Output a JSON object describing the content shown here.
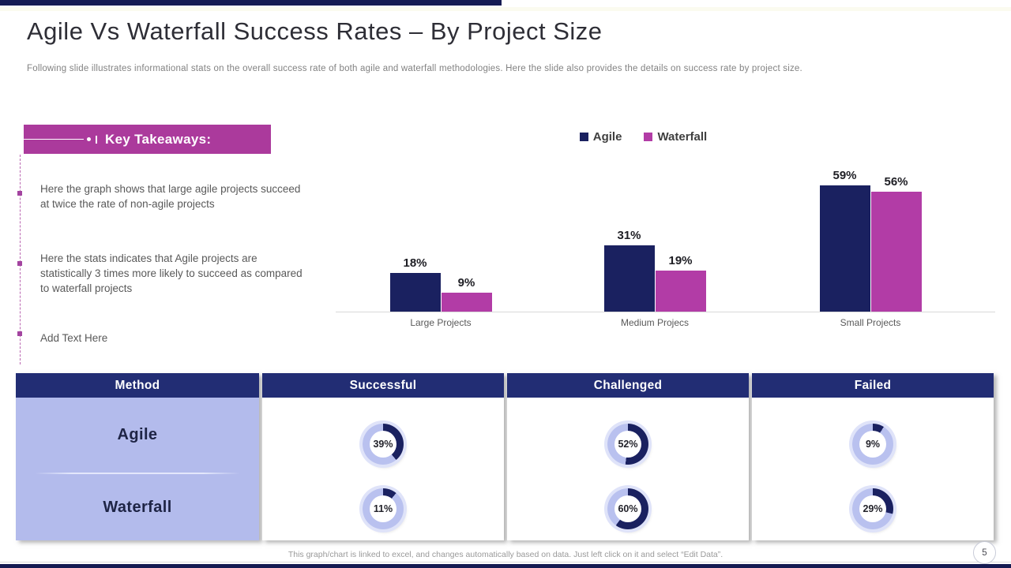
{
  "slide": {
    "title": "Agile Vs Waterfall Success Rates – By Project Size",
    "subtitle": "Following slide illustrates informational stats on the overall success rate of both agile and waterfall methodologies. Here the slide also provides the details on success rate by project size.",
    "footer_note": "This graph/chart is linked to excel, and changes automatically based on data. Just left click on it and select “Edit Data”.",
    "page_number": "5"
  },
  "key_takeaways": {
    "heading": "Key Takeaways:",
    "bullets": [
      "Here the graph shows that large agile projects succeed at twice the rate of non-agile projects",
      "Here the stats indicates that Agile projects are statistically 3 times more likely to succeed as compared to waterfall projects",
      "Add Text Here"
    ]
  },
  "chart_data": [
    {
      "type": "bar",
      "title": "",
      "categories": [
        "Large Projects",
        "Medium Projecs",
        "Small Projects"
      ],
      "series": [
        {
          "name": "Agile",
          "color": "#1A2160",
          "values": [
            18,
            31,
            59
          ]
        },
        {
          "name": "Waterfall",
          "color": "#B23CA6",
          "values": [
            9,
            19,
            56
          ]
        }
      ],
      "value_suffix": "%",
      "ylim": [
        0,
        65
      ],
      "legend_position": "top",
      "grid": false,
      "data_labels": true
    },
    {
      "type": "table",
      "columns": [
        "Method",
        "Successful",
        "Challenged",
        "Failed"
      ],
      "rows": [
        {
          "method": "Agile",
          "values": [
            39,
            52,
            9
          ]
        },
        {
          "method": "Waterfall",
          "values": [
            11,
            60,
            29
          ]
        }
      ],
      "cell_style": "donut",
      "value_suffix": "%"
    }
  ],
  "colors": {
    "accent_navy": "#151B52",
    "header_navy": "#222D74",
    "bar_navy": "#1A2160",
    "bar_magenta": "#B23CA6",
    "takeaway_magenta": "#AB3A9C",
    "method_periwinkle": "#B3BBEC",
    "donut_fill": "#1A2160",
    "donut_track": "#B9C1EF"
  }
}
